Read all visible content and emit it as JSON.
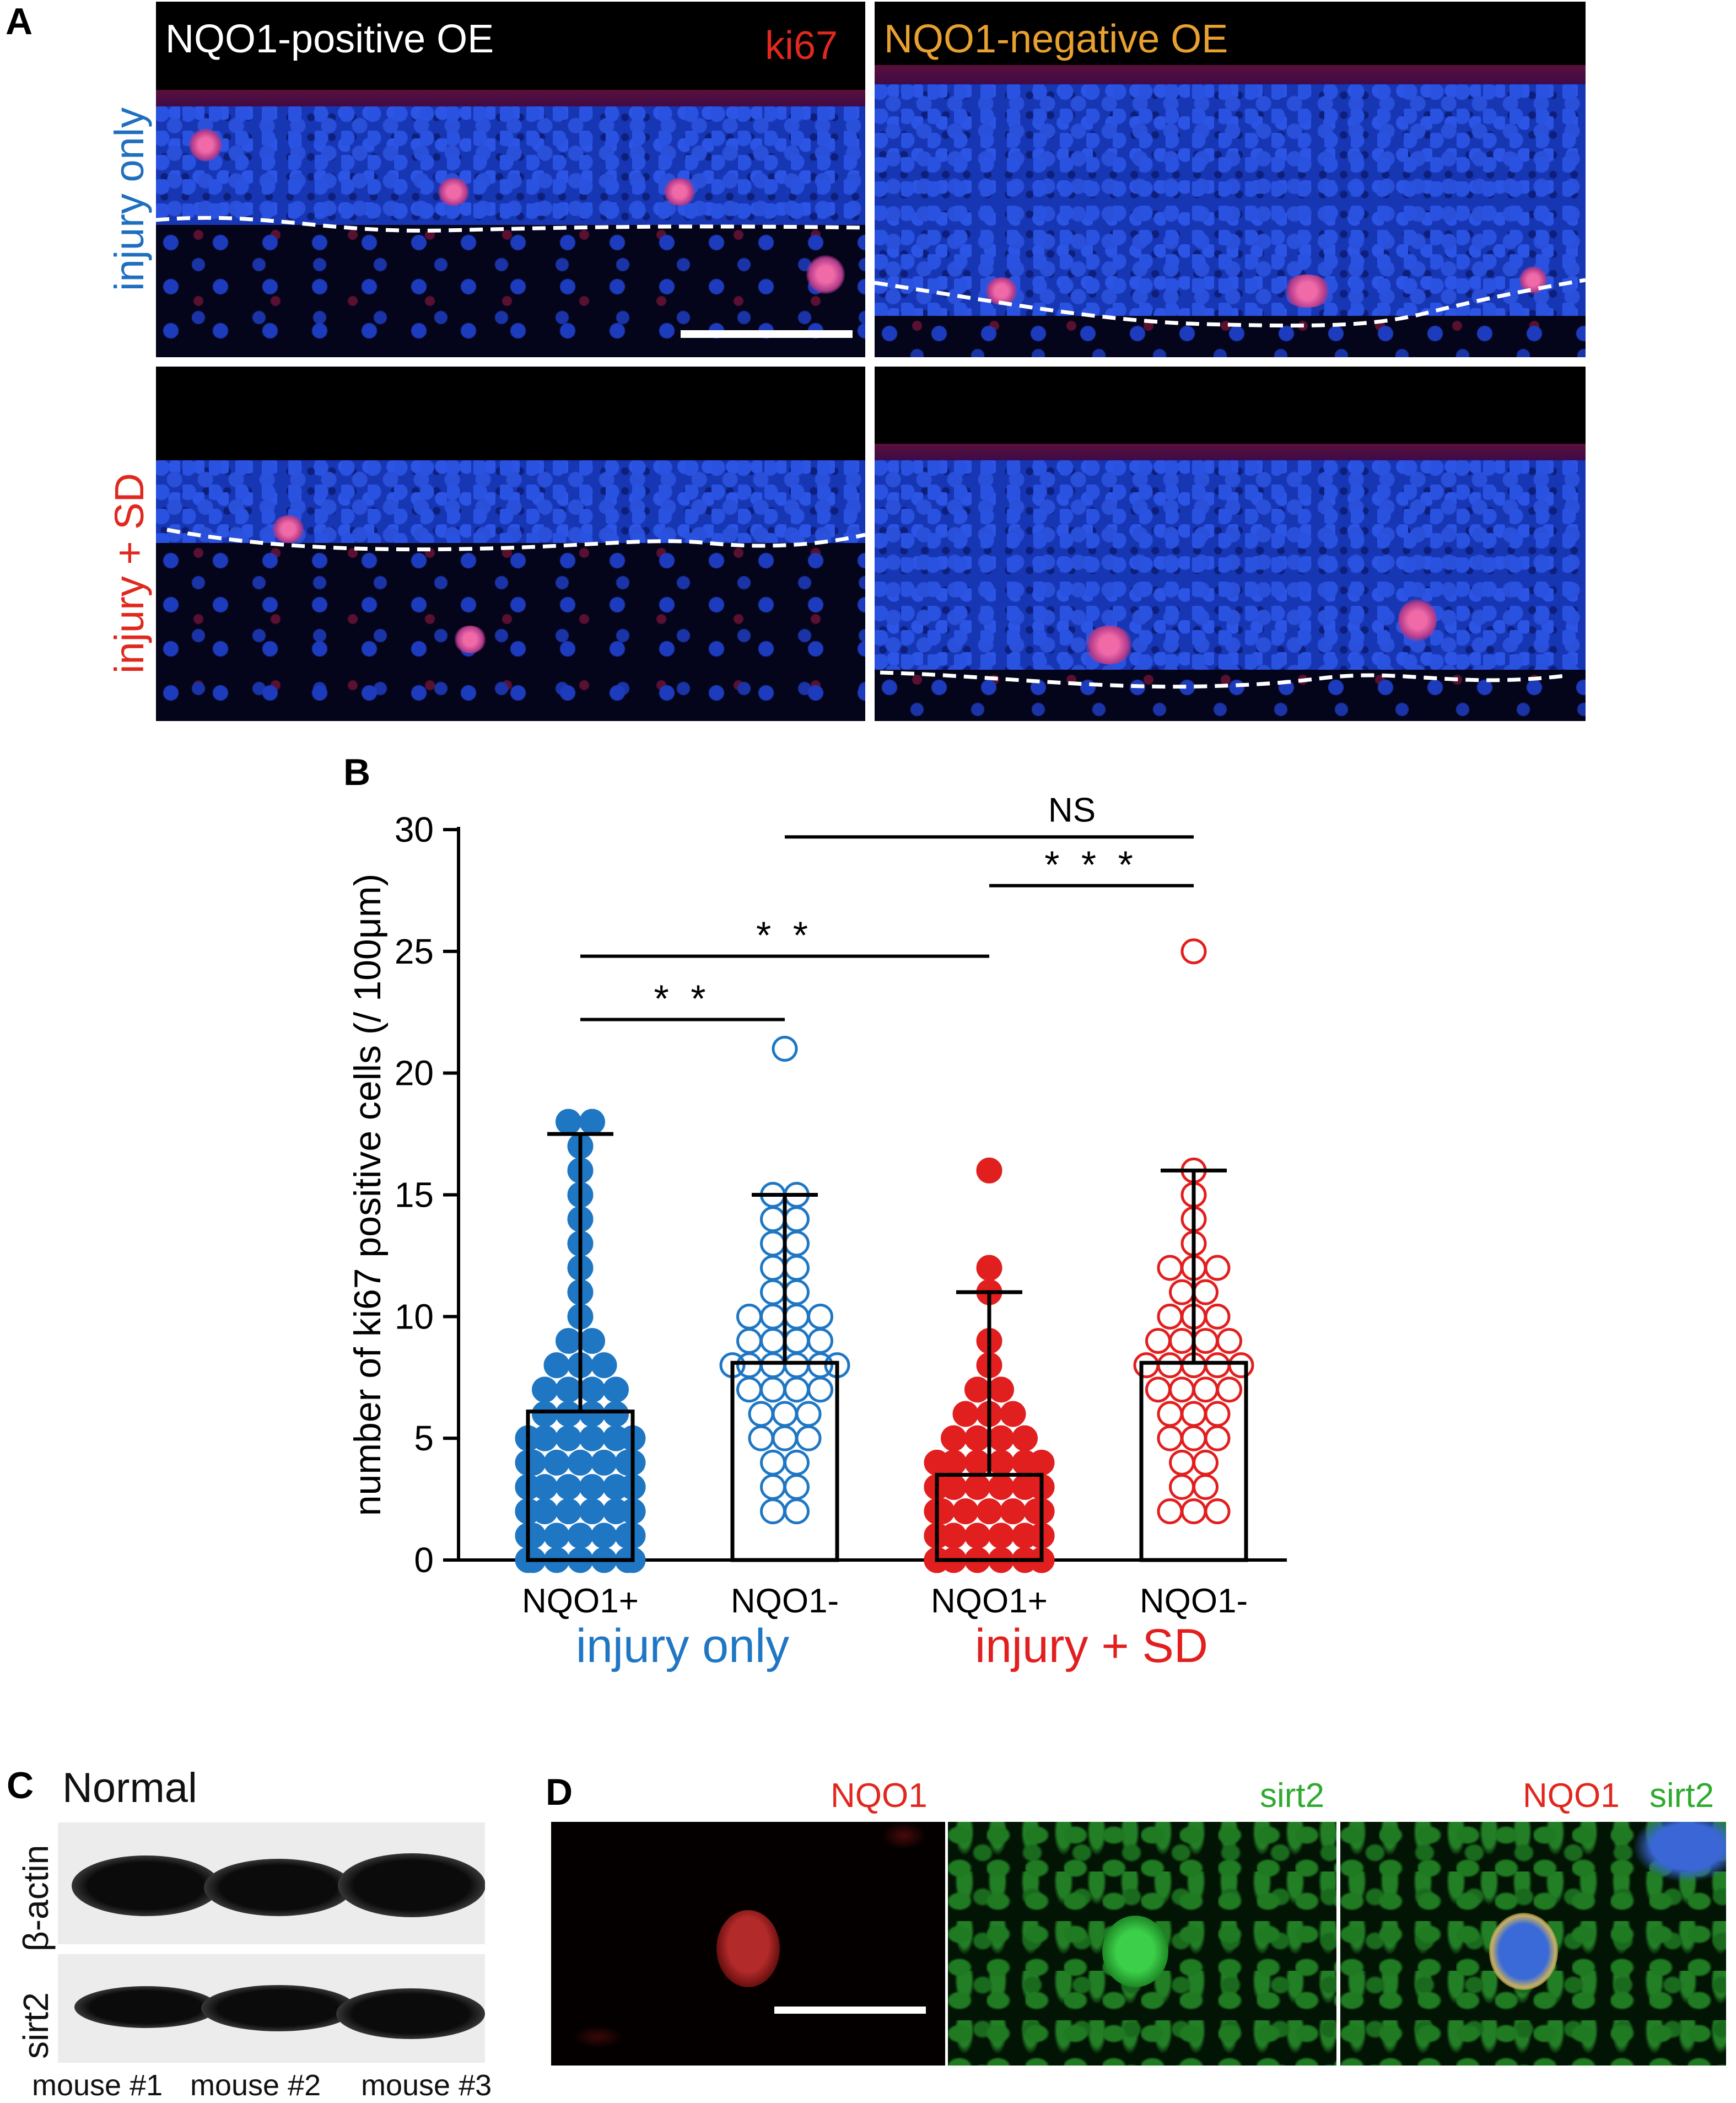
{
  "panel_letters": {
    "a": "A",
    "b": "B",
    "c": "C",
    "d": "D"
  },
  "panel_a": {
    "top_left_title": "NQO1-positive OE",
    "top_left_marker": "ki67",
    "top_right_title": "NQO1-negative OE",
    "row_labels": [
      "injury only",
      "injury  + SD"
    ],
    "colors": {
      "white": "#ffffff",
      "red": "#e0281e",
      "orange": "#e8a030",
      "blue": "#1f6fc0"
    }
  },
  "panel_b": {
    "chart_data": {
      "type": "bar",
      "ylabel": "number of ki67 positive cells (/ 100μm)",
      "ylim": [
        0,
        30
      ],
      "yticks": [
        "0",
        "5",
        "10",
        "15",
        "20",
        "25",
        "30"
      ],
      "categories": [
        "NQO1+",
        "NQO1-",
        "NQO1+",
        "NQO1-"
      ],
      "group_labels": [
        "injury only",
        "injury + SD"
      ],
      "group_colors": [
        "#1f77c4",
        "#e21f1f"
      ],
      "bars": [
        {
          "mean": 6.1,
          "sd_upper": 17.5,
          "color": "#1f77c4",
          "filled": true,
          "points": [
            0,
            0,
            0,
            0,
            0,
            0,
            0,
            1,
            1,
            1,
            1,
            1,
            1,
            1,
            2,
            2,
            2,
            2,
            2,
            2,
            2,
            2,
            3,
            3,
            3,
            3,
            3,
            3,
            3,
            3,
            4,
            4,
            4,
            4,
            4,
            4,
            4,
            5,
            5,
            5,
            5,
            5,
            5,
            6,
            6,
            6,
            6,
            7,
            7,
            7,
            7,
            8,
            8,
            8,
            9,
            9,
            10,
            11,
            12,
            13,
            14,
            15,
            16,
            17,
            18,
            18
          ]
        },
        {
          "mean": 8.1,
          "sd_upper": 15.0,
          "color": "#1f77c4",
          "filled": false,
          "points": [
            2,
            2,
            3,
            3,
            4,
            4,
            5,
            5,
            5,
            6,
            6,
            6,
            7,
            7,
            7,
            7,
            8,
            8,
            8,
            8,
            8,
            8,
            9,
            9,
            9,
            9,
            10,
            10,
            10,
            10,
            11,
            11,
            12,
            12,
            13,
            13,
            14,
            14,
            15,
            15,
            21
          ]
        },
        {
          "mean": 3.5,
          "sd_upper": 11.0,
          "color": "#e21f1f",
          "filled": true,
          "points": [
            0,
            0,
            0,
            0,
            0,
            0,
            0,
            0,
            0,
            0,
            0,
            0,
            1,
            1,
            1,
            1,
            1,
            1,
            1,
            1,
            1,
            1,
            2,
            2,
            2,
            2,
            2,
            2,
            2,
            2,
            2,
            3,
            3,
            3,
            3,
            3,
            3,
            3,
            3,
            4,
            4,
            4,
            4,
            4,
            4,
            5,
            5,
            5,
            5,
            6,
            6,
            6,
            7,
            7,
            8,
            9,
            11,
            12,
            16
          ]
        },
        {
          "mean": 8.1,
          "sd_upper": 16.0,
          "color": "#e21f1f",
          "filled": false,
          "points": [
            2,
            2,
            2,
            3,
            3,
            4,
            4,
            5,
            5,
            5,
            6,
            6,
            6,
            7,
            7,
            7,
            7,
            8,
            8,
            8,
            8,
            8,
            9,
            9,
            9,
            9,
            10,
            10,
            10,
            11,
            11,
            12,
            12,
            12,
            13,
            14,
            15,
            16,
            25
          ]
        }
      ],
      "significance": [
        {
          "from": 0,
          "to": 1,
          "label": "* *",
          "y": 22.2
        },
        {
          "from": 0,
          "to": 2,
          "label": "* *",
          "y": 24.8
        },
        {
          "from": 2,
          "to": 3,
          "label": "* * *",
          "y": 27.7
        },
        {
          "from": 1,
          "to": 3,
          "label": "NS",
          "y": 29.7
        }
      ]
    }
  },
  "panel_c": {
    "title": "Normal",
    "row_labels": [
      "β-actin",
      "sirt2"
    ],
    "lane_labels": [
      "mouse #1",
      "mouse #2",
      "mouse #3"
    ]
  },
  "panel_d": {
    "labels": {
      "nqo1": "NQO1",
      "sirt2": "sirt2"
    },
    "colors": {
      "red": "#e0281e",
      "green": "#2faa2f"
    }
  }
}
